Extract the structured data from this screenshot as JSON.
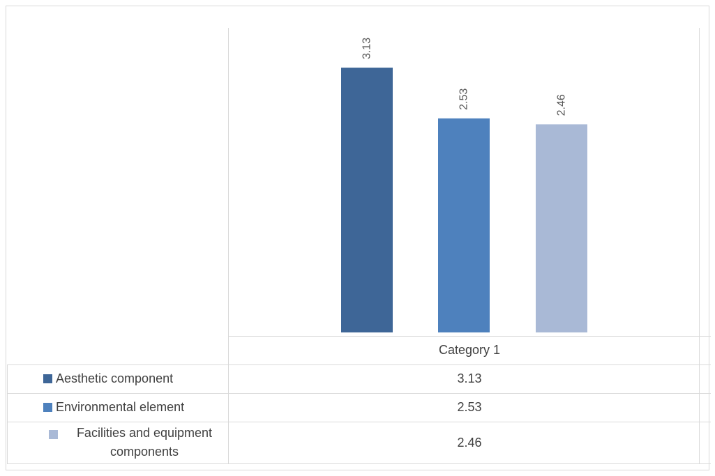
{
  "chart_data": {
    "type": "bar",
    "categories": [
      "Category 1"
    ],
    "series": [
      {
        "name": "Aesthetic component",
        "values": [
          3.13
        ],
        "color": "#3e6697"
      },
      {
        "name": "Environmental element",
        "values": [
          2.53
        ],
        "color": "#4e81bd"
      },
      {
        "name": "Facilities and equipment components",
        "values": [
          2.46
        ],
        "color": "#a9b9d6"
      }
    ],
    "data_labels": [
      "3.13",
      "2.53",
      "2.46"
    ],
    "legend": "data-table-left",
    "data_table": true,
    "grid": false,
    "ylim": [
      0,
      3.6
    ]
  }
}
